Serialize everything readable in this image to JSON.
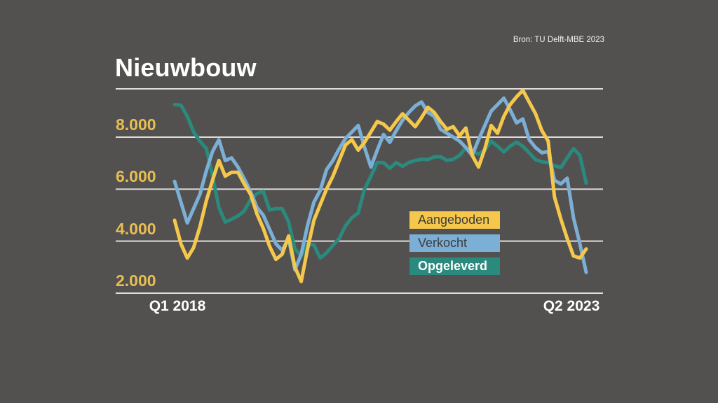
{
  "page": {
    "background_color": "#525150",
    "gridline_color": "#DFDEDB"
  },
  "header": {
    "title": "Nieuwbouw",
    "source": "Bron: TU Delft-MBE 2023"
  },
  "axes": {
    "y_ticks": [
      "8.000",
      "6.000",
      "4.000",
      "2.000"
    ],
    "y_tick_color": "#E8BE52",
    "x_ticks": [
      "Q1 2018",
      "Q2 2023"
    ],
    "x_tick_color": "#FFFFFF"
  },
  "legend": {
    "items": [
      {
        "label": "Aangeboden",
        "color": "#F5C84C",
        "text_color": "#3C3C3C",
        "bold": false
      },
      {
        "label": "Verkocht",
        "color": "#7CAFD6",
        "text_color": "#3C3C3C",
        "bold": false
      },
      {
        "label": "Opgeleverd",
        "color": "#2A8A7E",
        "text_color": "#FFFFFF",
        "bold": true
      }
    ]
  },
  "chart_data": {
    "type": "line",
    "title": "Nieuwbouw",
    "source": "Bron: TU Delft-MBE 2023",
    "x_unit": "month",
    "x_range": [
      "2018-01",
      "2023-06"
    ],
    "x_tick_labels": [
      "Q1 2018",
      "Q2 2023"
    ],
    "ylim": [
      2000,
      10000
    ],
    "y_gridlines": [
      2000,
      4000,
      6000,
      8000
    ],
    "grid": true,
    "legend_position": "inside-bottom-right",
    "series": [
      {
        "name": "Aangeboden",
        "color": "#F5C84C",
        "values": [
          4800,
          3900,
          3350,
          3750,
          4550,
          5550,
          6350,
          7100,
          6500,
          6650,
          6650,
          6200,
          5800,
          5050,
          4500,
          3800,
          3300,
          3500,
          4200,
          3000,
          2450,
          3700,
          4800,
          5400,
          6000,
          6500,
          7100,
          7700,
          7900,
          7500,
          7800,
          8200,
          8600,
          8500,
          8270,
          8600,
          8900,
          8650,
          8400,
          8750,
          9150,
          8950,
          8600,
          8300,
          8400,
          8050,
          8350,
          7300,
          6850,
          7550,
          8450,
          8150,
          8800,
          9250,
          9550,
          9800,
          9350,
          8900,
          8250,
          7850,
          5700,
          4850,
          4100,
          3430,
          3350,
          3700
        ]
      },
      {
        "name": "Verkocht",
        "color": "#7CAFD6",
        "values": [
          6300,
          5500,
          4700,
          5250,
          5800,
          6700,
          7450,
          7900,
          7100,
          7200,
          6850,
          6400,
          5900,
          5300,
          5000,
          4450,
          3900,
          3650,
          4100,
          2900,
          3500,
          4600,
          5500,
          5950,
          6750,
          7100,
          7550,
          7950,
          8200,
          8450,
          7600,
          6850,
          7500,
          8100,
          7800,
          8250,
          8650,
          8950,
          9200,
          9350,
          8950,
          8800,
          8300,
          8150,
          8000,
          7850,
          7600,
          7300,
          7900,
          8450,
          9000,
          9250,
          9500,
          9050,
          8550,
          8700,
          7900,
          7600,
          7400,
          7450,
          6340,
          6200,
          6420,
          4900,
          3900,
          2800
        ]
      },
      {
        "name": "Opgeleverd",
        "color": "#2A8A7E",
        "values": [
          9250,
          9230,
          8800,
          8200,
          7840,
          7570,
          6500,
          5300,
          4730,
          4840,
          4970,
          5160,
          5600,
          5830,
          5920,
          5200,
          5250,
          5250,
          4740,
          3700,
          3430,
          3900,
          3850,
          3350,
          3550,
          3840,
          4100,
          4590,
          4900,
          5080,
          6000,
          6500,
          7020,
          7020,
          6800,
          7020,
          6880,
          7020,
          7100,
          7150,
          7135,
          7240,
          7250,
          7100,
          7150,
          7300,
          7600,
          7450,
          7350,
          7500,
          7840,
          7650,
          7430,
          7650,
          7810,
          7650,
          7400,
          7130,
          7050,
          7020,
          6900,
          6830,
          7200,
          7560,
          7300,
          6230
        ]
      }
    ]
  }
}
